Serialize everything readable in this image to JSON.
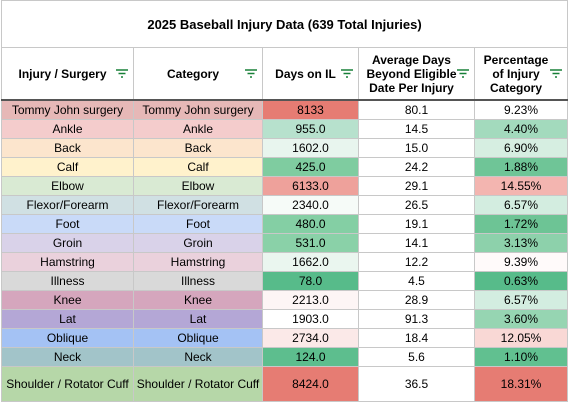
{
  "title": "2025 Baseball Injury Data (639 Total Injuries)",
  "table": {
    "headers": [
      "Injury / Surgery",
      "Category",
      "Days on IL",
      "Average Days Beyond Eligible Date Per Injury",
      "Percentage of Injury Category"
    ],
    "rows": [
      [
        "Tommy John surgery",
        "Tommy John surgery",
        "8133",
        "80.1",
        "9.23%"
      ],
      [
        "Ankle",
        "Ankle",
        "955.0",
        "14.5",
        "4.40%"
      ],
      [
        "Back",
        "Back",
        "1602.0",
        "15.0",
        "6.90%"
      ],
      [
        "Calf",
        "Calf",
        "425.0",
        "24.2",
        "1.88%"
      ],
      [
        "Elbow",
        "Elbow",
        "6133.0",
        "29.1",
        "14.55%"
      ],
      [
        "Flexor/Forearm",
        "Flexor/Forearm",
        "2340.0",
        "26.5",
        "6.57%"
      ],
      [
        "Foot",
        "Foot",
        "480.0",
        "19.1",
        "1.72%"
      ],
      [
        "Groin",
        "Groin",
        "531.0",
        "14.1",
        "3.13%"
      ],
      [
        "Hamstring",
        "Hamstring",
        "1662.0",
        "12.2",
        "9.39%"
      ],
      [
        "Illness",
        "Illness",
        "78.0",
        "4.5",
        "0.63%"
      ],
      [
        "Knee",
        "Knee",
        "2213.0",
        "28.9",
        "6.57%"
      ],
      [
        "Lat",
        "Lat",
        "1903.0",
        "91.3",
        "3.60%"
      ],
      [
        "Oblique",
        "Oblique",
        "2734.0",
        "18.4",
        "12.05%"
      ],
      [
        "Neck",
        "Neck",
        "124.0",
        "5.6",
        "1.10%"
      ],
      [
        "Shoulder / Rotator Cuff",
        "Shoulder / Rotator Cuff",
        "8424.0",
        "36.5",
        "18.31%"
      ]
    ],
    "fills": [
      [
        "#e6b8b7",
        "#e67c73",
        "#ffffff",
        "#ffffff"
      ],
      [
        "#f4cccc",
        "#b7e1cd",
        "#ffffff",
        "#a3dabd"
      ],
      [
        "#fce5cd",
        "#e8f5ee",
        "#ffffff",
        "#d6eee1"
      ],
      [
        "#fff2cc",
        "#7fcca0",
        "#ffffff",
        "#6fc597"
      ],
      [
        "#d9ead3",
        "#eea19b",
        "#ffffff",
        "#f3b5b0"
      ],
      [
        "#d0e0e3",
        "#f6fbf8",
        "#ffffff",
        "#d3ede0"
      ],
      [
        "#c9daf8",
        "#84cfa4",
        "#ffffff",
        "#6dc495"
      ],
      [
        "#d9d2e9",
        "#8ad1a8",
        "#ffffff",
        "#8dd1ab"
      ],
      [
        "#ead1dc",
        "#eaf6ef",
        "#ffffff",
        "#fffafa"
      ],
      [
        "#d9d9d9",
        "#57bb8a",
        "#ffffff",
        "#57bb8a"
      ],
      [
        "#d5a6bd",
        "#fdf5f5",
        "#ffffff",
        "#d3ede0"
      ],
      [
        "#b4a7d6",
        "#ffffff",
        "#ffffff",
        "#96d5b2"
      ],
      [
        "#a4c2f4",
        "#fbe9e8",
        "#ffffff",
        "#f9d8d5"
      ],
      [
        "#a2c4c9",
        "#5dbe8e",
        "#ffffff",
        "#61c090"
      ],
      [
        "#b6d7a8",
        "#e67c73",
        "#ffffff",
        "#e67c73"
      ]
    ]
  }
}
